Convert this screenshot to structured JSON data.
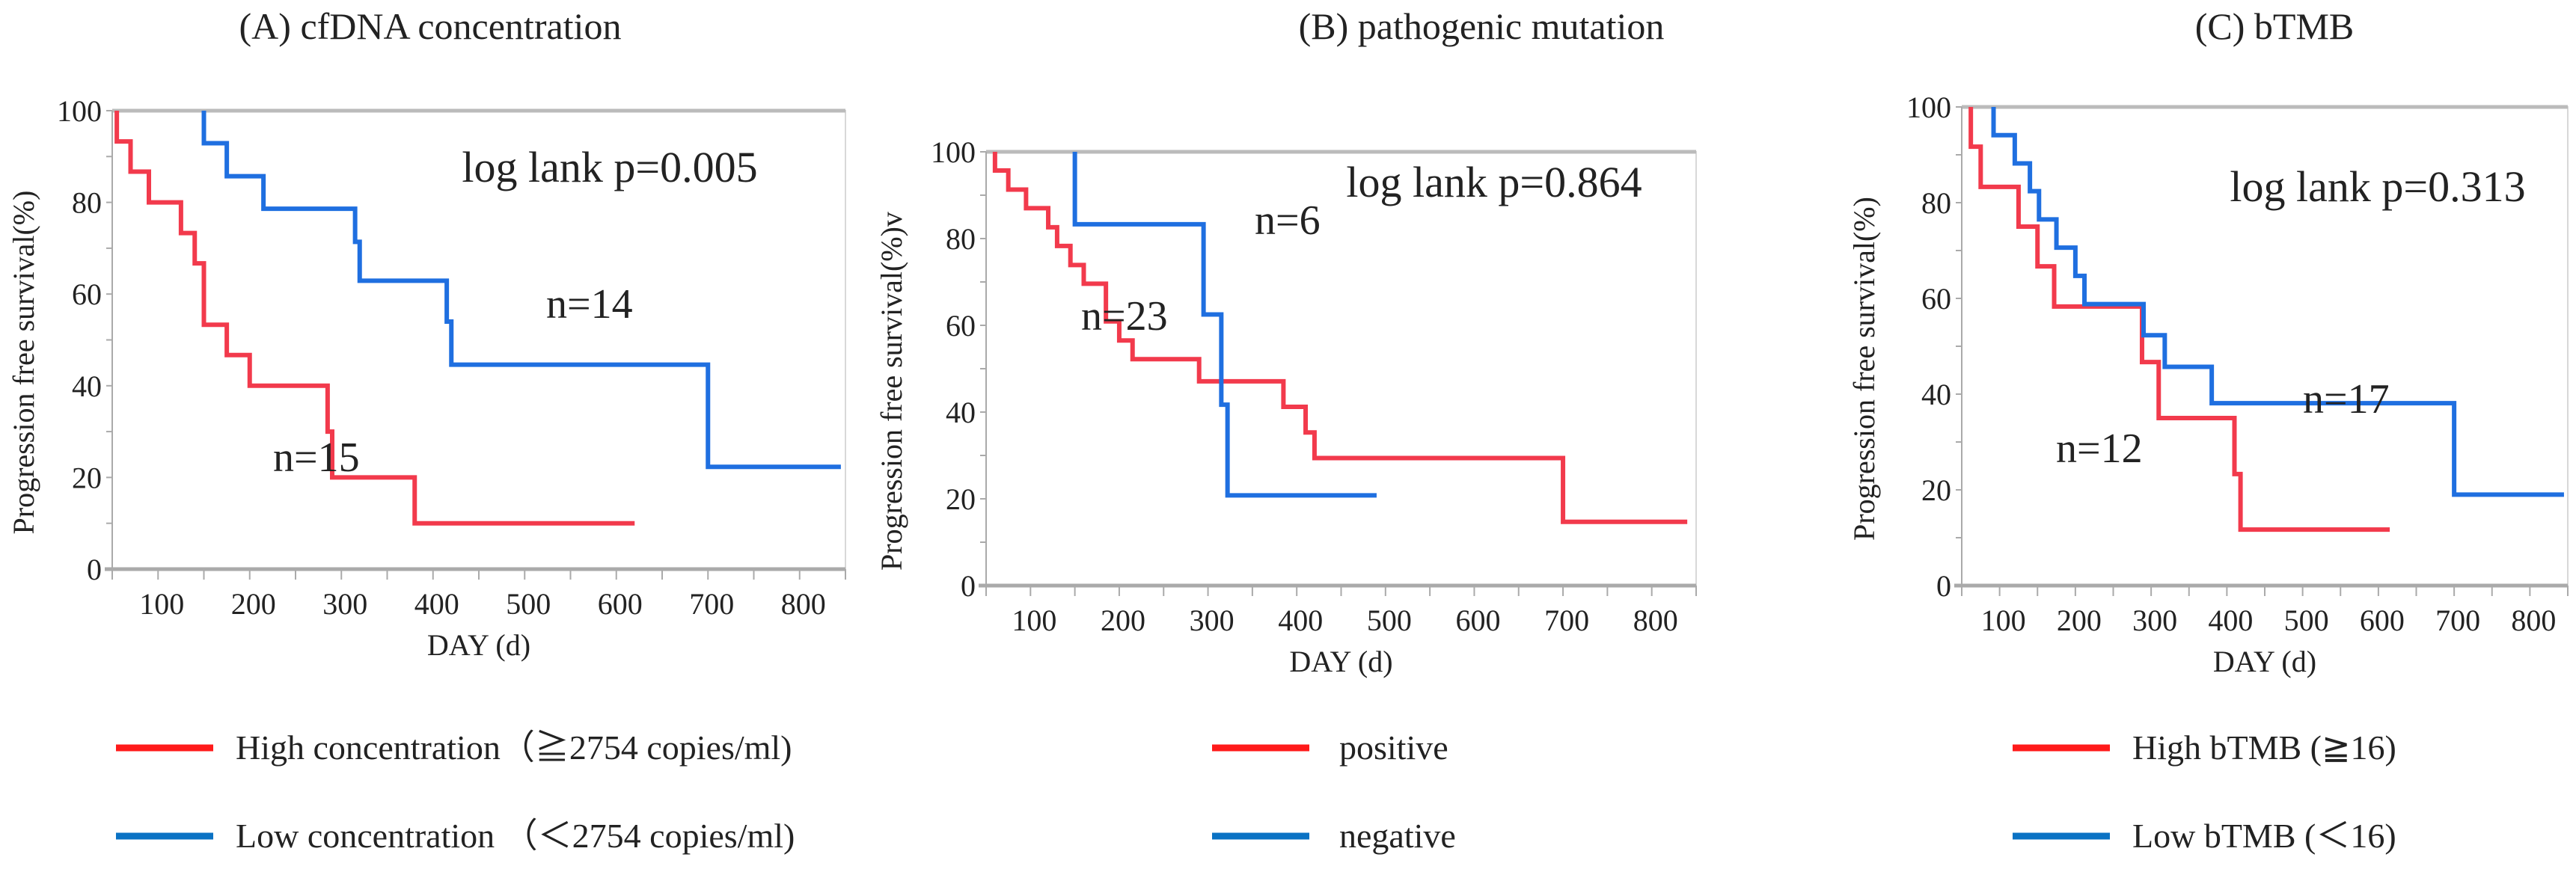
{
  "colors": {
    "high": "#f23a4c",
    "low": "#1f6fe0",
    "legend_high": "#ff1a1a",
    "legend_low": "#0a72c4",
    "axis": "#aaaaaa"
  },
  "chart_data": [
    {
      "type": "line",
      "subtype": "kaplan-meier step",
      "title": "(A) cfDNA concentration",
      "xlabel": "DAY (d)",
      "ylabel": "Progression free survival(%)",
      "xlim": [
        50,
        850
      ],
      "ylim": [
        0,
        100
      ],
      "xticks": [
        100,
        200,
        300,
        400,
        500,
        600,
        700,
        800
      ],
      "yticks": [
        0,
        20,
        40,
        60,
        80,
        100
      ],
      "annotation": {
        "text": "log lank p=0.005",
        "color": "red"
      },
      "series": [
        {
          "name": "High concentration（≧2754 copies/ml)",
          "key": "high",
          "n_label": "n=15",
          "start": 55,
          "end": 620,
          "steps": [
            [
              55,
              93.3
            ],
            [
              70,
              86.7
            ],
            [
              90,
              80
            ],
            [
              125,
              73.3
            ],
            [
              140,
              66.7
            ],
            [
              150,
              53.3
            ],
            [
              175,
              46.7
            ],
            [
              200,
              40
            ],
            [
              285,
              30
            ],
            [
              290,
              20
            ],
            [
              380,
              10
            ]
          ]
        },
        {
          "name": "Low concentration （＜2754 copies/ml)",
          "key": "low",
          "n_label": "n=14",
          "start": 150,
          "end": 845,
          "steps": [
            [
              150,
              92.9
            ],
            [
              175,
              85.7
            ],
            [
              215,
              78.6
            ],
            [
              315,
              71.4
            ],
            [
              320,
              62.9
            ],
            [
              415,
              54
            ],
            [
              420,
              44.6
            ],
            [
              700,
              22.3
            ]
          ]
        }
      ]
    },
    {
      "type": "line",
      "subtype": "kaplan-meier step",
      "title": "(B) pathogenic  mutation",
      "xlabel": "DAY (d)",
      "ylabel": "Progression free survival(%)v",
      "xlim": [
        50,
        850
      ],
      "ylim": [
        0,
        100
      ],
      "xticks": [
        100,
        200,
        300,
        400,
        500,
        600,
        700,
        800
      ],
      "yticks": [
        0,
        20,
        40,
        60,
        80,
        100
      ],
      "annotation": {
        "text": "log lank p=0.864",
        "color": "black"
      },
      "series": [
        {
          "name": "positive",
          "key": "high",
          "n_label": "n=23",
          "start": 60,
          "end": 840,
          "steps": [
            [
              60,
              95.7
            ],
            [
              75,
              91.3
            ],
            [
              95,
              87
            ],
            [
              120,
              82.6
            ],
            [
              130,
              78.3
            ],
            [
              145,
              73.9
            ],
            [
              160,
              69.6
            ],
            [
              185,
              60.9
            ],
            [
              200,
              56.5
            ],
            [
              215,
              52.2
            ],
            [
              290,
              47.1
            ],
            [
              385,
              41.2
            ],
            [
              410,
              35.3
            ],
            [
              420,
              29.4
            ],
            [
              700,
              14.7
            ]
          ]
        },
        {
          "name": "negative",
          "key": "low",
          "n_label": "n=6",
          "start": 150,
          "end": 490,
          "steps": [
            [
              150,
              83.3
            ],
            [
              295,
              62.5
            ],
            [
              315,
              41.7
            ],
            [
              322,
              20.8
            ]
          ]
        }
      ]
    },
    {
      "type": "line",
      "subtype": "kaplan-meier step",
      "title": "(C) bTMB",
      "xlabel": "DAY (d)",
      "ylabel": "Progression free survival(%)",
      "xlim": [
        50,
        850
      ],
      "ylim": [
        0,
        100
      ],
      "xticks": [
        100,
        200,
        300,
        400,
        500,
        600,
        700,
        800
      ],
      "yticks": [
        0,
        20,
        40,
        60,
        80,
        100
      ],
      "annotation": {
        "text": "log lank p=0.313",
        "color": "black"
      },
      "series": [
        {
          "name": "High bTMB (≧16)",
          "key": "high",
          "n_label": "n=12",
          "start": 62,
          "end": 615,
          "steps": [
            [
              62,
              91.7
            ],
            [
              75,
              83.3
            ],
            [
              125,
              75
            ],
            [
              150,
              66.7
            ],
            [
              172,
              58.3
            ],
            [
              288,
              46.7
            ],
            [
              310,
              35
            ],
            [
              410,
              23.3
            ],
            [
              418,
              11.7
            ]
          ]
        },
        {
          "name": "Low  bTMB (＜16)",
          "key": "low",
          "n_label": "n=17",
          "start": 92,
          "end": 845,
          "steps": [
            [
              92,
              94.1
            ],
            [
              120,
              88.2
            ],
            [
              140,
              82.4
            ],
            [
              152,
              76.5
            ],
            [
              175,
              70.6
            ],
            [
              200,
              64.7
            ],
            [
              212,
              58.8
            ],
            [
              290,
              52.3
            ],
            [
              318,
              45.7
            ],
            [
              380,
              38.1
            ],
            [
              700,
              19
            ]
          ]
        }
      ]
    }
  ]
}
